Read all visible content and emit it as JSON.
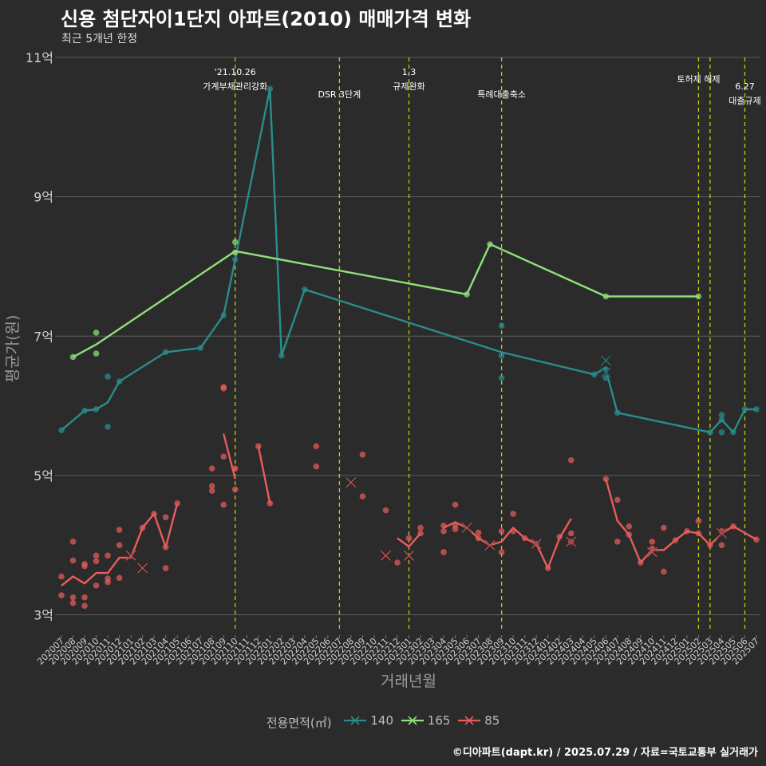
{
  "chart_data": {
    "type": "line",
    "title": "신용 첨단자이1단지 아파트(2010) 매매가격 변화",
    "subtitle": "최근 5개년 한정",
    "xlabel": "거래년월",
    "ylabel": "평균가(원)",
    "caption": "©디아파트(dapt.kr) / 2025.07.29 / 자료=국토교통부 실거래가",
    "legend_title": "전용면적(㎡)",
    "legend_position": "bottom",
    "grid": "horizontal",
    "y_unit": "억",
    "ylim": [
      2.8,
      11.0
    ],
    "y_ticks": [
      3,
      5,
      7,
      9,
      11
    ],
    "y_tick_labels": [
      "3억",
      "5억",
      "7억",
      "9억",
      "11억"
    ],
    "x_categories": [
      "202007",
      "202008",
      "202009",
      "202010",
      "202011",
      "202012",
      "202101",
      "202102",
      "202103",
      "202104",
      "202105",
      "202106",
      "202107",
      "202108",
      "202109",
      "202110",
      "202111",
      "202112",
      "202201",
      "202202",
      "202203",
      "202204",
      "202205",
      "202206",
      "202207",
      "202208",
      "202209",
      "202210",
      "202211",
      "202212",
      "202301",
      "202302",
      "202303",
      "202304",
      "202305",
      "202306",
      "202307",
      "202308",
      "202309",
      "202310",
      "202311",
      "202312",
      "202401",
      "202402",
      "202403",
      "202404",
      "202405",
      "202406",
      "202407",
      "202408",
      "202409",
      "202410",
      "202411",
      "202412",
      "202501",
      "202502",
      "202503",
      "202504",
      "202505",
      "202506",
      "202507"
    ],
    "events": [
      {
        "x": "202110",
        "label": "'21.10.26\n가계부채관리강화"
      },
      {
        "x": "202207",
        "label": "DSR 3단계"
      },
      {
        "x": "202301",
        "label": "1.3\n규제완화"
      },
      {
        "x": "202309",
        "label": "특례대출축소"
      },
      {
        "x": "202502",
        "label": "토허제 해제"
      },
      {
        "x": "202503",
        "label": ""
      },
      {
        "x": "202506",
        "label": "6.27\n대출규제"
      }
    ],
    "series": [
      {
        "name": "140",
        "color": "#2a8c8c",
        "line": [
          [
            "202007",
            5.65
          ],
          [
            "202009",
            5.93
          ],
          [
            "202010",
            5.95
          ],
          [
            "202011",
            6.05
          ],
          [
            "202012",
            6.35
          ],
          [
            "202104",
            6.77
          ],
          [
            "202107",
            6.83
          ],
          [
            "202109",
            7.3
          ],
          [
            "202110",
            8.1
          ],
          [
            "202201",
            10.55
          ],
          [
            "202202",
            6.72
          ],
          [
            "202204",
            7.67
          ],
          [
            "202309",
            6.77
          ],
          [
            "202405",
            6.45
          ],
          [
            "202406",
            6.55
          ],
          [
            "202406",
            6.52
          ],
          [
            "202407",
            5.9
          ],
          [
            "202503",
            5.62
          ],
          [
            "202504",
            5.8
          ],
          [
            "202505",
            5.62
          ],
          [
            "202506",
            5.95
          ],
          [
            "202507",
            5.95
          ]
        ],
        "points": [
          [
            "202007",
            5.65
          ],
          [
            "202009",
            5.93
          ],
          [
            "202010",
            5.95
          ],
          [
            "202011",
            6.42
          ],
          [
            "202011",
            5.7
          ],
          [
            "202012",
            6.35
          ],
          [
            "202104",
            6.77
          ],
          [
            "202107",
            6.83
          ],
          [
            "202109",
            7.3
          ],
          [
            "202110",
            8.1
          ],
          [
            "202201",
            10.55
          ],
          [
            "202202",
            6.72
          ],
          [
            "202204",
            7.67
          ],
          [
            "202309",
            7.15
          ],
          [
            "202309",
            6.72
          ],
          [
            "202309",
            6.4
          ],
          [
            "202405",
            6.45
          ],
          [
            "202406",
            6.52
          ],
          [
            "202406",
            6.4
          ],
          [
            "202407",
            5.9
          ],
          [
            "202503",
            5.62
          ],
          [
            "202504",
            5.87
          ],
          [
            "202504",
            5.8
          ],
          [
            "202504",
            5.62
          ],
          [
            "202505",
            5.62
          ],
          [
            "202506",
            5.95
          ],
          [
            "202507",
            5.95
          ]
        ],
        "cancelled": [
          [
            "202406",
            6.65
          ],
          [
            "202406",
            6.48
          ]
        ]
      },
      {
        "name": "165",
        "color": "#8fe07a",
        "line": [
          [
            "202008",
            6.7
          ],
          [
            "202010",
            6.88
          ],
          [
            "202110",
            8.22
          ],
          [
            "202306",
            7.6
          ],
          [
            "202308",
            8.32
          ],
          [
            "202406",
            7.57
          ],
          [
            "202502",
            7.57
          ]
        ],
        "points": [
          [
            "202008",
            6.7
          ],
          [
            "202010",
            7.05
          ],
          [
            "202010",
            6.75
          ],
          [
            "202110",
            8.35
          ],
          [
            "202110",
            8.2
          ],
          [
            "202306",
            7.6
          ],
          [
            "202308",
            8.32
          ],
          [
            "202406",
            7.57
          ],
          [
            "202502",
            7.57
          ]
        ],
        "cancelled": []
      },
      {
        "name": "85",
        "color": "#e85c5c",
        "line": [
          [
            [
              "202007",
              3.42
            ],
            [
              "202008",
              3.55
            ],
            [
              "202009",
              3.45
            ],
            [
              "202010",
              3.6
            ],
            [
              "202011",
              3.6
            ],
            [
              "202012",
              3.82
            ],
            [
              "202101",
              3.82
            ],
            [
              "202102",
              4.25
            ],
            [
              "202103",
              4.45
            ],
            [
              "202104",
              3.97
            ],
            [
              "202105",
              4.6
            ]
          ],
          [
            [
              "202109",
              5.6
            ],
            [
              "202110",
              4.95
            ]
          ],
          [
            [
              "202112",
              5.42
            ],
            [
              "202201",
              4.6
            ]
          ],
          [
            [
              "202212",
              4.1
            ],
            [
              "202301",
              3.98
            ],
            [
              "202302",
              4.17
            ]
          ],
          [
            [
              "202304",
              4.25
            ],
            [
              "202305",
              4.33
            ],
            [
              "202306",
              4.25
            ],
            [
              "202307",
              4.1
            ],
            [
              "202308",
              4.0
            ],
            [
              "202309",
              4.05
            ],
            [
              "202310",
              4.25
            ],
            [
              "202311",
              4.1
            ],
            [
              "202312",
              4.02
            ],
            [
              "202401",
              3.67
            ],
            [
              "202402",
              4.1
            ],
            [
              "202403",
              4.38
            ]
          ],
          [
            [
              "202406",
              4.95
            ],
            [
              "202407",
              4.35
            ],
            [
              "202408",
              4.15
            ],
            [
              "202409",
              3.75
            ],
            [
              "202410",
              3.93
            ],
            [
              "202411",
              3.93
            ],
            [
              "202412",
              4.07
            ],
            [
              "202501",
              4.2
            ],
            [
              "202502",
              4.17
            ],
            [
              "202503",
              4.0
            ],
            [
              "202504",
              4.17
            ],
            [
              "202505",
              4.27
            ],
            [
              "202507",
              4.08
            ]
          ]
        ],
        "points": [
          [
            "202007",
            3.55
          ],
          [
            "202007",
            3.28
          ],
          [
            "202008",
            4.05
          ],
          [
            "202008",
            3.78
          ],
          [
            "202008",
            3.25
          ],
          [
            "202008",
            3.17
          ],
          [
            "202009",
            3.73
          ],
          [
            "202009",
            3.7
          ],
          [
            "202009",
            3.25
          ],
          [
            "202009",
            3.13
          ],
          [
            "202010",
            3.85
          ],
          [
            "202010",
            3.77
          ],
          [
            "202010",
            3.42
          ],
          [
            "202011",
            3.85
          ],
          [
            "202011",
            3.52
          ],
          [
            "202011",
            3.47
          ],
          [
            "202012",
            4.22
          ],
          [
            "202012",
            4.0
          ],
          [
            "202012",
            3.53
          ],
          [
            "202102",
            4.25
          ],
          [
            "202103",
            4.45
          ],
          [
            "202104",
            4.4
          ],
          [
            "202104",
            3.97
          ],
          [
            "202104",
            3.67
          ],
          [
            "202105",
            4.6
          ],
          [
            "202108",
            5.1
          ],
          [
            "202108",
            4.85
          ],
          [
            "202108",
            4.78
          ],
          [
            "202109",
            6.25
          ],
          [
            "202109",
            6.27
          ],
          [
            "202109",
            5.27
          ],
          [
            "202109",
            4.58
          ],
          [
            "202110",
            5.1
          ],
          [
            "202110",
            4.8
          ],
          [
            "202112",
            5.42
          ],
          [
            "202201",
            4.6
          ],
          [
            "202205",
            5.42
          ],
          [
            "202205",
            5.13
          ],
          [
            "202209",
            5.3
          ],
          [
            "202209",
            4.7
          ],
          [
            "202211",
            4.5
          ],
          [
            "202212",
            3.75
          ],
          [
            "202301",
            4.1
          ],
          [
            "202302",
            4.25
          ],
          [
            "202302",
            4.17
          ],
          [
            "202304",
            4.28
          ],
          [
            "202304",
            4.2
          ],
          [
            "202304",
            3.9
          ],
          [
            "202305",
            4.58
          ],
          [
            "202305",
            4.28
          ],
          [
            "202305",
            4.23
          ],
          [
            "202307",
            4.18
          ],
          [
            "202307",
            4.1
          ],
          [
            "202309",
            4.2
          ],
          [
            "202309",
            3.9
          ],
          [
            "202310",
            4.45
          ],
          [
            "202310",
            4.2
          ],
          [
            "202311",
            4.1
          ],
          [
            "202312",
            4.02
          ],
          [
            "202401",
            3.67
          ],
          [
            "202402",
            4.12
          ],
          [
            "202403",
            5.22
          ],
          [
            "202403",
            4.17
          ],
          [
            "202403",
            4.05
          ],
          [
            "202406",
            4.95
          ],
          [
            "202407",
            4.65
          ],
          [
            "202407",
            4.05
          ],
          [
            "202408",
            4.27
          ],
          [
            "202408",
            4.15
          ],
          [
            "202409",
            3.75
          ],
          [
            "202410",
            4.05
          ],
          [
            "202410",
            3.95
          ],
          [
            "202411",
            4.25
          ],
          [
            "202411",
            3.62
          ],
          [
            "202412",
            4.07
          ],
          [
            "202501",
            4.2
          ],
          [
            "202502",
            4.35
          ],
          [
            "202502",
            4.17
          ],
          [
            "202503",
            4.0
          ],
          [
            "202504",
            4.2
          ],
          [
            "202504",
            4.0
          ],
          [
            "202505",
            4.27
          ],
          [
            "202507",
            4.08
          ]
        ],
        "cancelled": [
          [
            "202101",
            3.85
          ],
          [
            "202102",
            3.67
          ],
          [
            "202208",
            4.9
          ],
          [
            "202211",
            3.85
          ],
          [
            "202301",
            3.85
          ],
          [
            "202306",
            4.25
          ],
          [
            "202308",
            4.0
          ],
          [
            "202312",
            4.02
          ],
          [
            "202403",
            4.05
          ],
          [
            "202410",
            3.9
          ],
          [
            "202504",
            4.17
          ]
        ]
      }
    ]
  }
}
